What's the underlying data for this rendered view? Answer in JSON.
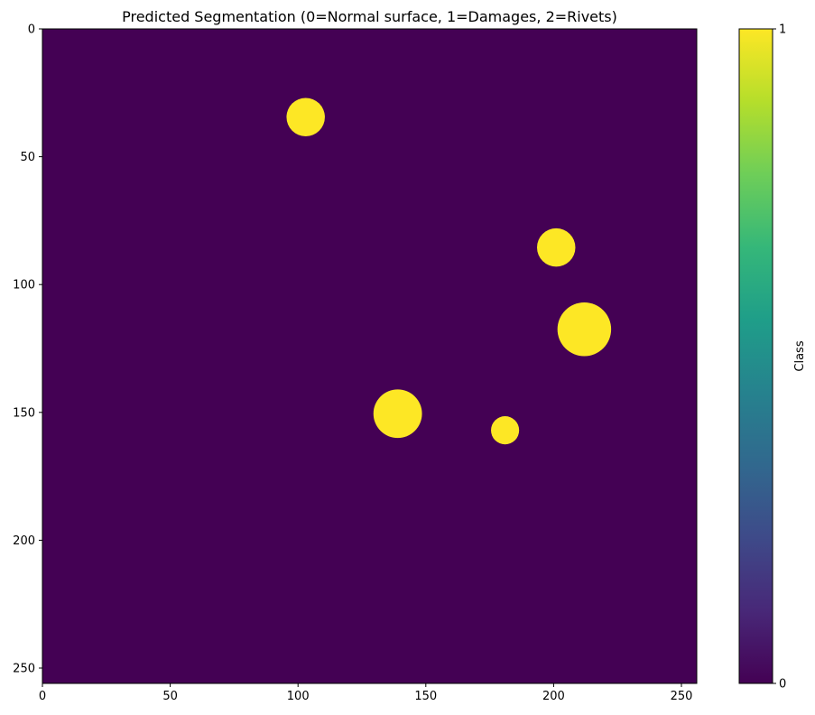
{
  "chart_data": {
    "type": "heatmap",
    "title": "Predicted Segmentation (0=Normal surface, 1=Damages, 2=Rivets)",
    "xlabel": "",
    "ylabel": "",
    "grid": false,
    "image_size": [
      256,
      256
    ],
    "xlim": [
      0,
      256
    ],
    "ylim": [
      256,
      0
    ],
    "xticks": [
      0,
      50,
      100,
      150,
      200,
      250
    ],
    "yticks": [
      0,
      50,
      100,
      150,
      200,
      250
    ],
    "background_class": 0,
    "blobs": [
      {
        "class": 1,
        "cx": 103,
        "cy": 34.5,
        "r": 7.5
      },
      {
        "class": 1,
        "cx": 201,
        "cy": 85.5,
        "r": 7.5
      },
      {
        "class": 1,
        "cx": 212,
        "cy": 117.5,
        "r": 10.5
      },
      {
        "class": 1,
        "cx": 139,
        "cy": 150.5,
        "r": 9.5
      },
      {
        "class": 1,
        "cx": 181,
        "cy": 157,
        "r": 5.5
      }
    ],
    "colormap": "viridis",
    "colors": {
      "class0": "#440154",
      "class1": "#fde725"
    },
    "colorbar": {
      "label": "Class",
      "min": 0,
      "max": 1,
      "ticks": [
        0,
        1
      ],
      "stops": [
        "#440154",
        "#482878",
        "#3e4a89",
        "#31688e",
        "#26828e",
        "#1f9e89",
        "#35b779",
        "#6ece58",
        "#b5de2b",
        "#fde725"
      ]
    }
  }
}
